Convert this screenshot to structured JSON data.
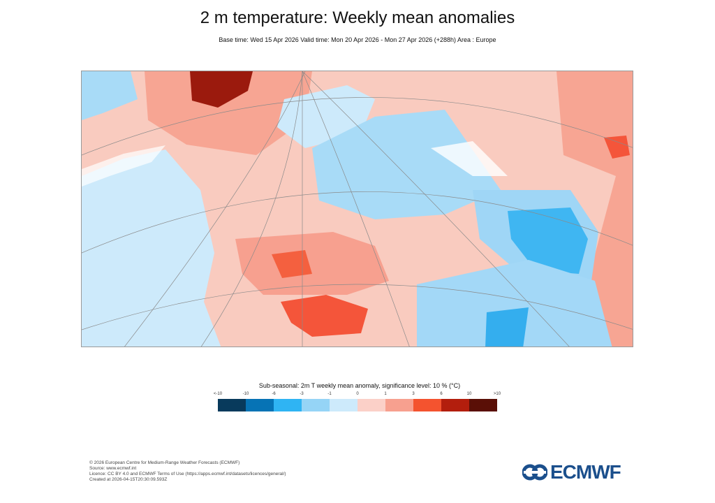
{
  "header": {
    "title": "2 m temperature: Weekly mean anomalies",
    "subtitle": "Base time: Wed 15 Apr 2026 Valid time: Mon 20 Apr 2026 - Mon 27 Apr 2026 (+288h) Area : Europe"
  },
  "map": {
    "area": "Europe",
    "colors": {
      "far_above": "#5a0f06",
      "strong_above": "#b31e0d",
      "above_6": "#f4532f",
      "above_3": "#f7a08f",
      "above_1": "#fbd0c8",
      "below_0": "#cdeafb",
      "below_1": "#95d4f6",
      "below_3": "#2fb4f3",
      "below_6": "#0673b5",
      "far_below": "#083a5c"
    }
  },
  "legend": {
    "title": "Sub-seasonal: 2m T weekly mean anomaly, significance level: 10 % (°C)",
    "labels": [
      "<-10",
      "-10",
      "-6",
      "-3",
      "-1",
      "0",
      "1",
      "3",
      "6",
      "10",
      ">10"
    ],
    "colors": [
      "#083a5c",
      "#0673b5",
      "#2fb4f3",
      "#95d4f6",
      "#cdeafb",
      "#fbd0c8",
      "#f7a08f",
      "#f4532f",
      "#b31e0d",
      "#5a0f06"
    ]
  },
  "footer": {
    "lines": [
      "© 2026 European Centre for Medium-Range Weather Forecasts (ECMWF)",
      "Source: www.ecmwf.int",
      "Licence: CC BY 4.0 and ECMWF Terms of Use (https://apps.ecmwf.int/datasets/licences/general/)",
      "Created at 2026-04-15T20:30:09.593Z"
    ],
    "logo": "ECMWF"
  }
}
